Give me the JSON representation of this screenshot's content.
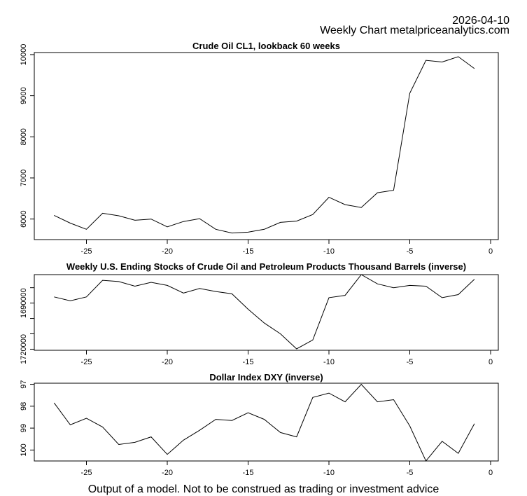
{
  "header": {
    "date": "2026-04-10",
    "subtitle": "Weekly Chart metalpriceanalytics.com"
  },
  "footer": "Output of a model. Not to be construed as trading or investment advice",
  "colors": {
    "line": "#000000",
    "background": "#ffffff"
  },
  "chart_data": [
    {
      "type": "line",
      "title": "Crude Oil CL1, lookback 60 weeks",
      "xlabel": "",
      "ylabel": "",
      "xlim": [
        -27.5,
        0
      ],
      "ylim": [
        5500,
        10050
      ],
      "inverse": false,
      "x_ticks": [
        "-25",
        "-20",
        "-15",
        "-10",
        "-5",
        "0"
      ],
      "y_ticks": [
        "6000",
        "7000",
        "8000",
        "9000",
        "10000"
      ],
      "x": [
        -27,
        -26,
        -25,
        -24,
        -23,
        -22,
        -21,
        -20,
        -19,
        -18,
        -17,
        -16,
        -15,
        -14,
        -13,
        -12,
        -11,
        -10,
        -9,
        -8,
        -7,
        -6,
        -5,
        -4,
        -3,
        -2,
        -1
      ],
      "values": [
        6090,
        5900,
        5750,
        6140,
        6080,
        5970,
        6000,
        5810,
        5940,
        6010,
        5750,
        5660,
        5680,
        5750,
        5920,
        5950,
        6110,
        6530,
        6350,
        6280,
        6640,
        6700,
        9060,
        9860,
        9820,
        9950,
        9660
      ]
    },
    {
      "type": "line",
      "title": "Weekly U.S. Ending Stocks of Crude Oil and Petroleum Products Thousand Barrels (inverse)",
      "xlabel": "",
      "ylabel": "",
      "xlim": [
        -27.5,
        0
      ],
      "ylim": [
        1720700,
        1671500
      ],
      "inverse": true,
      "x_ticks": [
        "-25",
        "-20",
        "-15",
        "-10",
        "-5",
        "0"
      ],
      "y_ticks": [
        "1690000",
        "1720000"
      ],
      "y_tick_values": [
        1690000,
        1720000
      ],
      "y_minor_ticks": [
        1680000,
        1700000,
        1710000
      ],
      "x": [
        -27,
        -26,
        -25,
        -24,
        -23,
        -22,
        -21,
        -20,
        -19,
        -18,
        -17,
        -16,
        -15,
        -14,
        -13,
        -12,
        -11,
        -10,
        -9,
        -8,
        -7,
        -6,
        -5,
        -4,
        -3,
        -2,
        -1
      ],
      "values": [
        1686000,
        1688500,
        1686000,
        1675200,
        1676000,
        1679000,
        1676500,
        1678500,
        1683500,
        1680500,
        1682500,
        1684000,
        1694000,
        1703000,
        1710000,
        1719800,
        1714000,
        1686500,
        1685000,
        1671500,
        1677500,
        1680000,
        1678500,
        1679000,
        1686500,
        1684500,
        1674500
      ]
    },
    {
      "type": "line",
      "title": "Dollar Index DXY (inverse)",
      "xlabel": "",
      "ylabel": "",
      "xlim": [
        -27.5,
        0
      ],
      "ylim": [
        100.5,
        96.95
      ],
      "inverse": true,
      "x_ticks": [
        "-25",
        "-20",
        "-15",
        "-10",
        "-5",
        "0"
      ],
      "y_ticks": [
        "97",
        "98",
        "99",
        "100"
      ],
      "x": [
        -27,
        -26,
        -25,
        -24,
        -23,
        -22,
        -21,
        -20,
        -19,
        -18,
        -17,
        -16,
        -15,
        -14,
        -13,
        -12,
        -11,
        -10,
        -9,
        -8,
        -7,
        -6,
        -5,
        -4,
        -3,
        -2,
        -1
      ],
      "values": [
        97.85,
        98.85,
        98.55,
        98.95,
        99.75,
        99.65,
        99.4,
        100.2,
        99.55,
        99.1,
        98.6,
        98.65,
        98.3,
        98.6,
        99.2,
        99.4,
        97.6,
        97.4,
        97.8,
        97.0,
        97.8,
        97.7,
        98.9,
        100.5,
        99.6,
        100.15,
        98.8
      ]
    }
  ]
}
